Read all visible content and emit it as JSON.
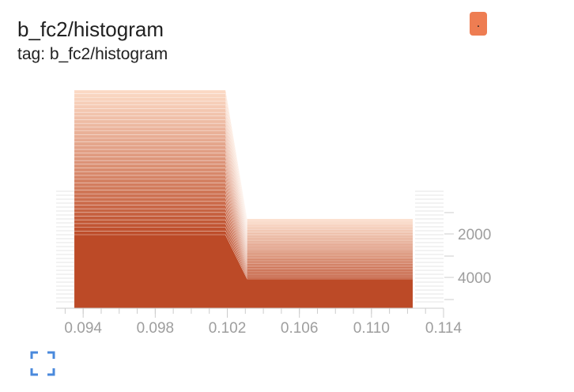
{
  "card": {
    "title": "b_fc2/histogram",
    "subtitle": "tag: b_fc2/histogram",
    "run_badge_label": ".",
    "run_color": "#ee7d52",
    "expand_icon": "fullscreen-icon",
    "expand_icon_color": "#4a89dc"
  },
  "chart_data": {
    "type": "area",
    "mode": "offset",
    "title": "",
    "xlabel": "",
    "ylabel": "",
    "x_ticks": [
      "0.094",
      "0.098",
      "0.102",
      "0.106",
      "0.110",
      "0.114"
    ],
    "y_ticks": [
      "2000",
      "4000"
    ],
    "xlim": [
      0.0925,
      0.114
    ],
    "step_time_axis": "steps increase downward (older = lighter, newer = darker)",
    "bins": [
      {
        "x_start": 0.0935,
        "x_end": 0.1019
      },
      {
        "x_start": 0.1031,
        "x_end": 0.1123
      }
    ],
    "series_count": 40,
    "left_bin_height": 1,
    "right_bin_height": 0.38,
    "color_light": "#fbd9c4",
    "color_dark": "#bc4a27",
    "grid": false
  }
}
